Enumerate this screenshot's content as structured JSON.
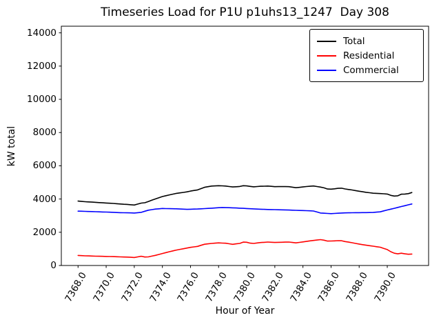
{
  "chart_data": {
    "type": "line",
    "title": "Timeseries Load for P1U p1uhs13_1247  Day 308",
    "xlabel": "Hour of Year",
    "ylabel": "kW total",
    "xlim": [
      7366.81,
      7392.94
    ],
    "ylim": [
      0,
      14400
    ],
    "grid": false,
    "legend_position": "upper right",
    "xtick_labels": [
      "7368.0",
      "7370.0",
      "7372.0",
      "7374.0",
      "7376.0",
      "7378.0",
      "7380.0",
      "7382.0",
      "7384.0",
      "7386.0",
      "7388.0",
      "7390.0"
    ],
    "ytick_labels": [
      "0",
      "2000",
      "4000",
      "6000",
      "8000",
      "10000",
      "12000",
      "14000"
    ],
    "x": [
      7368.0,
      7368.25,
      7368.5,
      7368.75,
      7369.0,
      7369.25,
      7369.5,
      7369.75,
      7370.0,
      7370.25,
      7370.5,
      7370.75,
      7371.0,
      7371.25,
      7371.5,
      7371.75,
      7372.0,
      7372.25,
      7372.5,
      7372.75,
      7373.0,
      7373.25,
      7373.5,
      7373.75,
      7374.0,
      7374.25,
      7374.5,
      7374.75,
      7375.0,
      7375.25,
      7375.5,
      7375.75,
      7376.0,
      7376.25,
      7376.5,
      7376.75,
      7377.0,
      7377.25,
      7377.5,
      7377.75,
      7378.0,
      7378.25,
      7378.5,
      7378.75,
      7379.0,
      7379.25,
      7379.5,
      7379.75,
      7380.0,
      7380.25,
      7380.5,
      7380.75,
      7381.0,
      7381.25,
      7381.5,
      7381.75,
      7382.0,
      7382.25,
      7382.5,
      7382.75,
      7383.0,
      7383.25,
      7383.5,
      7383.75,
      7384.0,
      7384.25,
      7384.5,
      7384.75,
      7385.0,
      7385.25,
      7385.5,
      7385.75,
      7386.0,
      7386.25,
      7386.5,
      7386.75,
      7387.0,
      7387.25,
      7387.5,
      7387.75,
      7388.0,
      7388.25,
      7388.5,
      7388.75,
      7389.0,
      7389.25,
      7389.5,
      7389.75,
      7390.0,
      7390.25,
      7390.5,
      7390.75,
      7391.0,
      7391.25,
      7391.5,
      7391.75
    ],
    "series": [
      {
        "name": "Total",
        "color": "#000000",
        "values": [
          3875,
          3856,
          3838,
          3826,
          3815,
          3800,
          3785,
          3772,
          3760,
          3746,
          3733,
          3717,
          3700,
          3687,
          3675,
          3657,
          3640,
          3698,
          3755,
          3775,
          3850,
          3928,
          4005,
          4078,
          4150,
          4200,
          4250,
          4295,
          4340,
          4370,
          4400,
          4430,
          4477,
          4513,
          4550,
          4628,
          4705,
          4743,
          4780,
          4790,
          4800,
          4795,
          4780,
          4750,
          4725,
          4740,
          4755,
          4800,
          4790,
          4761,
          4735,
          4751,
          4768,
          4774,
          4780,
          4763,
          4745,
          4748,
          4750,
          4748,
          4745,
          4713,
          4680,
          4703,
          4727,
          4750,
          4770,
          4785,
          4750,
          4718,
          4672,
          4603,
          4595,
          4613,
          4642,
          4650,
          4605,
          4575,
          4545,
          4508,
          4470,
          4438,
          4405,
          4378,
          4350,
          4340,
          4330,
          4315,
          4300,
          4220,
          4180,
          4195,
          4290,
          4300,
          4325,
          4390
        ]
      },
      {
        "name": "Residential",
        "color": "#ff0000",
        "values": [
          605,
          592,
          580,
          575,
          570,
          562,
          555,
          550,
          545,
          540,
          535,
          528,
          520,
          512,
          505,
          492,
          480,
          518,
          555,
          510,
          520,
          565,
          610,
          665,
          720,
          775,
          830,
          880,
          930,
          970,
          1010,
          1050,
          1090,
          1120,
          1150,
          1215,
          1280,
          1305,
          1330,
          1345,
          1360,
          1350,
          1340,
          1308,
          1275,
          1303,
          1330,
          1405,
          1400,
          1345,
          1330,
          1355,
          1380,
          1395,
          1410,
          1398,
          1385,
          1393,
          1400,
          1405,
          1410,
          1385,
          1360,
          1390,
          1420,
          1450,
          1480,
          1505,
          1530,
          1558,
          1525,
          1470,
          1475,
          1480,
          1495,
          1490,
          1440,
          1405,
          1370,
          1330,
          1290,
          1255,
          1220,
          1190,
          1160,
          1130,
          1100,
          1030,
          960,
          830,
          740,
          700,
          740,
          700,
          675,
          690
        ]
      },
      {
        "name": "Commercial",
        "color": "#0000ff",
        "values": [
          3270,
          3264,
          3258,
          3251,
          3245,
          3238,
          3230,
          3222,
          3215,
          3206,
          3198,
          3189,
          3180,
          3175,
          3170,
          3165,
          3160,
          3180,
          3200,
          3265,
          3330,
          3363,
          3395,
          3413,
          3430,
          3425,
          3420,
          3415,
          3410,
          3400,
          3390,
          3380,
          3387,
          3393,
          3400,
          3413,
          3425,
          3438,
          3450,
          3463,
          3477,
          3490,
          3483,
          3477,
          3470,
          3460,
          3450,
          3439,
          3428,
          3416,
          3405,
          3396,
          3388,
          3379,
          3370,
          3365,
          3360,
          3355,
          3350,
          3343,
          3335,
          3328,
          3320,
          3313,
          3307,
          3300,
          3290,
          3280,
          3220,
          3160,
          3147,
          3133,
          3120,
          3133,
          3147,
          3160,
          3165,
          3170,
          3175,
          3178,
          3180,
          3183,
          3185,
          3188,
          3190,
          3210,
          3230,
          3285,
          3340,
          3390,
          3440,
          3495,
          3550,
          3600,
          3650,
          3700
        ]
      }
    ]
  }
}
